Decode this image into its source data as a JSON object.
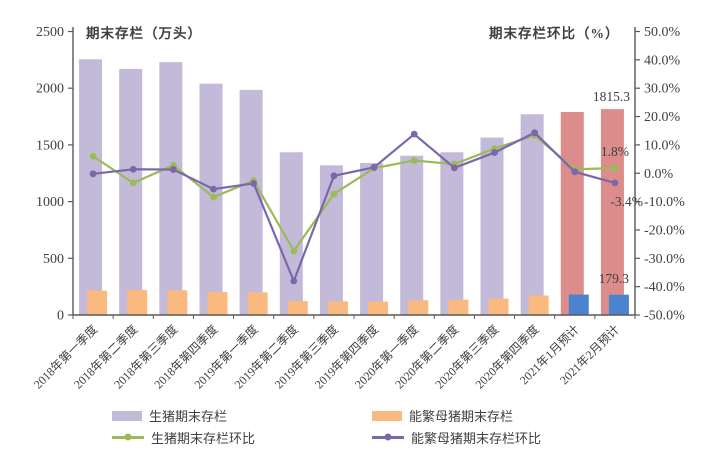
{
  "chart_data": {
    "type": "combo",
    "categories": [
      "2018年第一季度",
      "2018年第二季度",
      "2018年第三季度",
      "2018年第四季度",
      "2019年第一季度",
      "2019年第二季度",
      "2019年第三季度",
      "2019年第四季度",
      "2020年第一季度",
      "2020年第二季度",
      "2020年第三季度",
      "2020年第四季度",
      "2021年1月预计",
      "2021年2月预计"
    ],
    "series": [
      {
        "name": "生猪期末存栏",
        "type": "bar",
        "axis": "left",
        "values": [
          2255,
          2170,
          2230,
          2040,
          1985,
          1435,
          1320,
          1340,
          1405,
          1435,
          1565,
          1770,
          1790,
          1815.3
        ],
        "color": "#c2bad8",
        "forecast_color": "#dd8c8c",
        "forecast_from_index": 12
      },
      {
        "name": "能繁母猪期末存栏",
        "type": "bar",
        "axis": "left",
        "values": [
          215,
          220,
          218,
          202,
          200,
          122,
          120,
          118,
          130,
          135,
          145,
          172,
          180,
          179.3
        ],
        "color": "#f9b97f",
        "forecast_color": "#4a84d0",
        "forecast_from_index": 12
      },
      {
        "name": "生猪期末存栏环比",
        "type": "line",
        "axis": "right",
        "values": [
          6.0,
          -3.4,
          2.8,
          -8.4,
          -2.6,
          -27.4,
          -7.3,
          1.8,
          4.5,
          3.2,
          8.7,
          13.4,
          1.4,
          1.8
        ],
        "color": "#9bbb59"
      },
      {
        "name": "能繁母猪期末存栏环比",
        "type": "line",
        "axis": "right",
        "values": [
          -0.2,
          1.4,
          1.3,
          -5.6,
          -3.6,
          -38.0,
          -0.9,
          2.1,
          13.8,
          1.9,
          7.3,
          14.3,
          0.5,
          -3.4
        ],
        "color": "#7b68ab"
      }
    ],
    "left_axis": {
      "title": "期末存栏（万头）",
      "min": 0,
      "max": 2500,
      "tick_labels": [
        "2500",
        "2000",
        "1500",
        "1000",
        "500",
        "0"
      ]
    },
    "right_axis": {
      "title": "期末存栏环比（%）",
      "min": -50,
      "max": 50,
      "tick_labels": [
        "50.0%",
        "40.0%",
        "30.0%",
        "20.0%",
        "10.0%",
        "0.0%",
        "-10.0%",
        "-20.0%",
        "-30.0%",
        "-40.0%",
        "-50.0%"
      ]
    },
    "grid": false,
    "legend_position": "bottom"
  },
  "annotations": [
    {
      "text": "1815.3"
    },
    {
      "text": "1.8%"
    },
    {
      "text": "-3.4%"
    },
    {
      "text": "179.3"
    }
  ],
  "legend": {
    "items": [
      {
        "label": "生猪期末存栏",
        "type": "bar",
        "color": "#c2bad8"
      },
      {
        "label": "能繁母猪期末存栏",
        "type": "bar",
        "color": "#f9b97f"
      },
      {
        "label": "生猪期末存栏环比",
        "type": "line",
        "color": "#9bbb59"
      },
      {
        "label": "能繁母猪期末存栏环比",
        "type": "line",
        "color": "#7b68ab"
      }
    ]
  },
  "style": {
    "text_color": "#404040",
    "axis_color": "#595959"
  }
}
